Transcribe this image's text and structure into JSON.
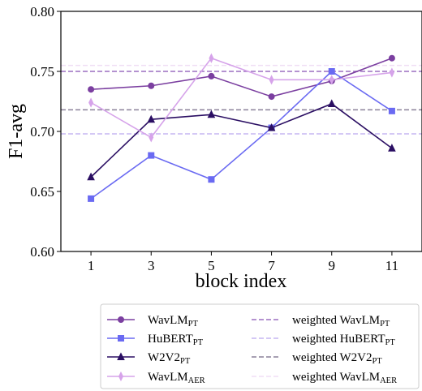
{
  "chart_data": {
    "type": "line",
    "xlabel": "block index",
    "ylabel": "F1-avg",
    "x": [
      1,
      3,
      5,
      7,
      9,
      11
    ],
    "x_ticks": [
      "1",
      "3",
      "5",
      "7",
      "9",
      "11"
    ],
    "ylim": [
      0.6,
      0.8
    ],
    "y_ticks": [
      "0.60",
      "0.65",
      "0.70",
      "0.75",
      "0.80"
    ],
    "grid": false,
    "legend_position": "below the plot, two columns",
    "series": [
      {
        "name": "WavLM",
        "sub": "PT",
        "color": "#7b3fa0",
        "marker": "circle",
        "values": [
          0.735,
          0.738,
          0.746,
          0.729,
          0.742,
          0.761
        ]
      },
      {
        "name": "HuBERT",
        "sub": "PT",
        "color": "#6a6af2",
        "marker": "square",
        "values": [
          0.644,
          0.68,
          0.66,
          0.703,
          0.75,
          0.717
        ]
      },
      {
        "name": "W2V2",
        "sub": "PT",
        "color": "#2b0f63",
        "marker": "triangle",
        "values": [
          0.662,
          0.71,
          0.714,
          0.703,
          0.723,
          0.686
        ]
      },
      {
        "name": "WavLM",
        "sub": "AER",
        "color": "#d6a3ea",
        "marker": "diamond",
        "values": [
          0.724,
          0.695,
          0.761,
          0.743,
          0.743,
          0.749
        ]
      }
    ],
    "reference_lines": [
      {
        "name": "weighted WavLM",
        "sub": "PT",
        "color": "#9b6fc0",
        "value": 0.75
      },
      {
        "name": "weighted HuBERT",
        "sub": "PT",
        "color": "#c6b6f2",
        "value": 0.698
      },
      {
        "name": "weighted W2V2",
        "sub": "PT",
        "color": "#8a809a",
        "value": 0.718
      },
      {
        "name": "weighted WavLM",
        "sub": "AER",
        "color": "#f0def5",
        "value": 0.755
      }
    ]
  }
}
